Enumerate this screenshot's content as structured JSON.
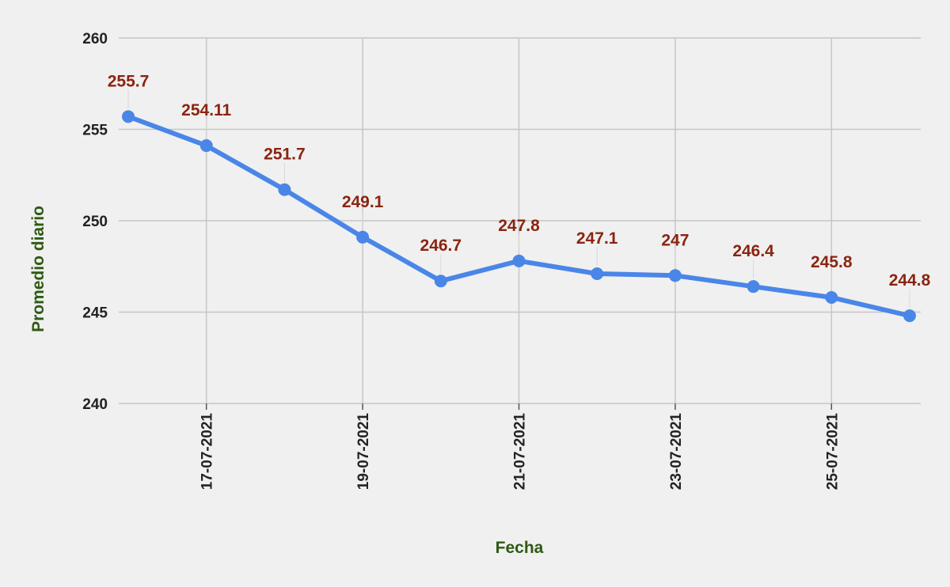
{
  "chart_data": {
    "type": "line",
    "xlabel": "Fecha",
    "ylabel": "Promedio diario",
    "ylim": [
      240,
      260
    ],
    "y_ticks": [
      "240",
      "245",
      "250",
      "255",
      "260"
    ],
    "x_tick_labels": [
      "17-07-2021",
      "19-07-2021",
      "21-07-2021",
      "23-07-2021",
      "25-07-2021"
    ],
    "x": [
      "16-07-2021",
      "17-07-2021",
      "18-07-2021",
      "19-07-2021",
      "20-07-2021",
      "21-07-2021",
      "22-07-2021",
      "23-07-2021",
      "24-07-2021",
      "25-07-2021",
      "26-07-2021"
    ],
    "values": [
      255.7,
      254.11,
      251.7,
      249.1,
      246.7,
      247.8,
      247.1,
      247,
      246.4,
      245.8,
      244.8
    ],
    "data_labels": [
      "255.7",
      "254.11",
      "251.7",
      "249.1",
      "246.7",
      "247.8",
      "247.1",
      "247",
      "246.4",
      "245.8",
      "244.8"
    ],
    "grid": true,
    "colors": {
      "line": "#4a86e8",
      "data_label": "#8b2410",
      "axis_title": "#2e5a14",
      "grid": "#c6c6c6",
      "background": "#f0f0f0"
    }
  }
}
